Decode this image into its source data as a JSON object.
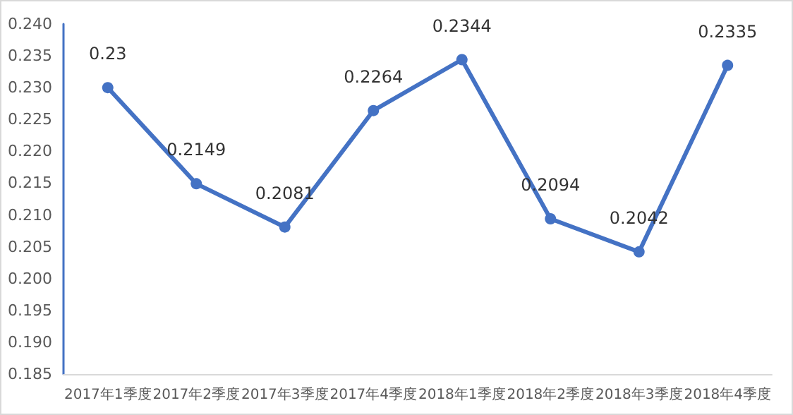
{
  "chart_data": {
    "type": "line",
    "categories": [
      "2017年1季度",
      "2017年2季度",
      "2017年3季度",
      "2017年4季度",
      "2018年1季度",
      "2018年2季度",
      "2018年3季度",
      "2018年4季度"
    ],
    "series": [
      {
        "color": "#4472c4",
        "values": [
          0.23,
          0.2149,
          0.2081,
          0.2264,
          0.2344,
          0.2094,
          0.2042,
          0.2335
        ]
      }
    ],
    "ylim": [
      0.185,
      0.24
    ],
    "yticks": [
      {
        "value": 0.185,
        "label": "0.185"
      },
      {
        "value": 0.19,
        "label": "0.190"
      },
      {
        "value": 0.195,
        "label": "0.195"
      },
      {
        "value": 0.2,
        "label": "0.200"
      },
      {
        "value": 0.205,
        "label": "0.205"
      },
      {
        "value": 0.21,
        "label": "0.210"
      },
      {
        "value": 0.215,
        "label": "0.215"
      },
      {
        "value": 0.22,
        "label": "0.220"
      },
      {
        "value": 0.225,
        "label": "0.225"
      },
      {
        "value": 0.23,
        "label": "0.230"
      },
      {
        "value": 0.235,
        "label": "0.235"
      },
      {
        "value": 0.24,
        "label": "0.240"
      }
    ],
    "data_labels": true,
    "marker": "circle",
    "line_style": "solid",
    "grid": false
  }
}
